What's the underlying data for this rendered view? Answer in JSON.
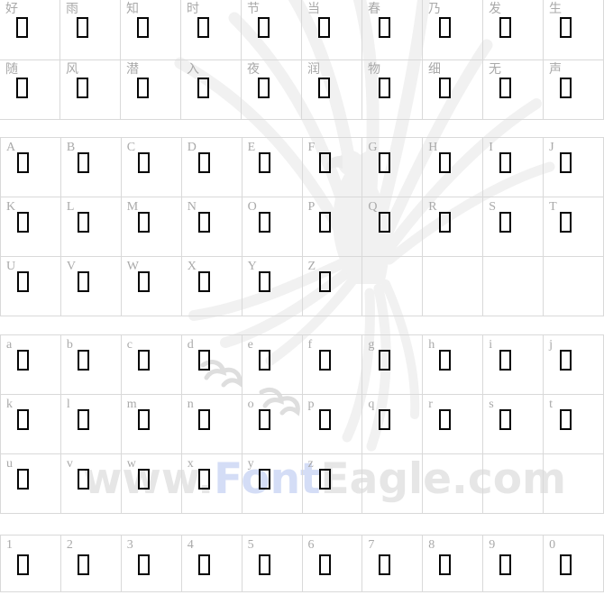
{
  "watermark": {
    "prefix": "www.",
    "brand": "Font",
    "suffix": "Eagle.com",
    "text_gray": "#e6e6e6",
    "text_blue": "#d4ddf6",
    "eagle_color": "#f1f1f1"
  },
  "colors": {
    "background": "#ffffff",
    "cell_border": "#d9d9d9",
    "label_text": "#a9a9a9",
    "missing_glyph_box": "#050505"
  },
  "sections": [
    {
      "name": "chinese-sample-characters",
      "rows": [
        [
          "好",
          "雨",
          "知",
          "时",
          "节",
          "当",
          "春",
          "乃",
          "发",
          "生"
        ],
        [
          "随",
          "风",
          "潜",
          "入",
          "夜",
          "润",
          "物",
          "细",
          "无",
          "声"
        ]
      ]
    },
    {
      "name": "uppercase-letters",
      "rows": [
        [
          "A",
          "B",
          "C",
          "D",
          "E",
          "F",
          "G",
          "H",
          "I",
          "J"
        ],
        [
          "K",
          "L",
          "M",
          "N",
          "O",
          "P",
          "Q",
          "R",
          "S",
          "T"
        ],
        [
          "U",
          "V",
          "W",
          "X",
          "Y",
          "Z",
          "",
          "",
          "",
          ""
        ]
      ]
    },
    {
      "name": "lowercase-letters",
      "rows": [
        [
          "a",
          "b",
          "c",
          "d",
          "e",
          "f",
          "g",
          "h",
          "i",
          "j"
        ],
        [
          "k",
          "l",
          "m",
          "n",
          "o",
          "p",
          "q",
          "r",
          "s",
          "t"
        ],
        [
          "u",
          "v",
          "w",
          "x",
          "y",
          "z",
          "",
          "",
          "",
          ""
        ]
      ]
    },
    {
      "name": "digits",
      "rows": [
        [
          "1",
          "2",
          "3",
          "4",
          "5",
          "6",
          "7",
          "8",
          "9",
          "0"
        ]
      ]
    }
  ]
}
